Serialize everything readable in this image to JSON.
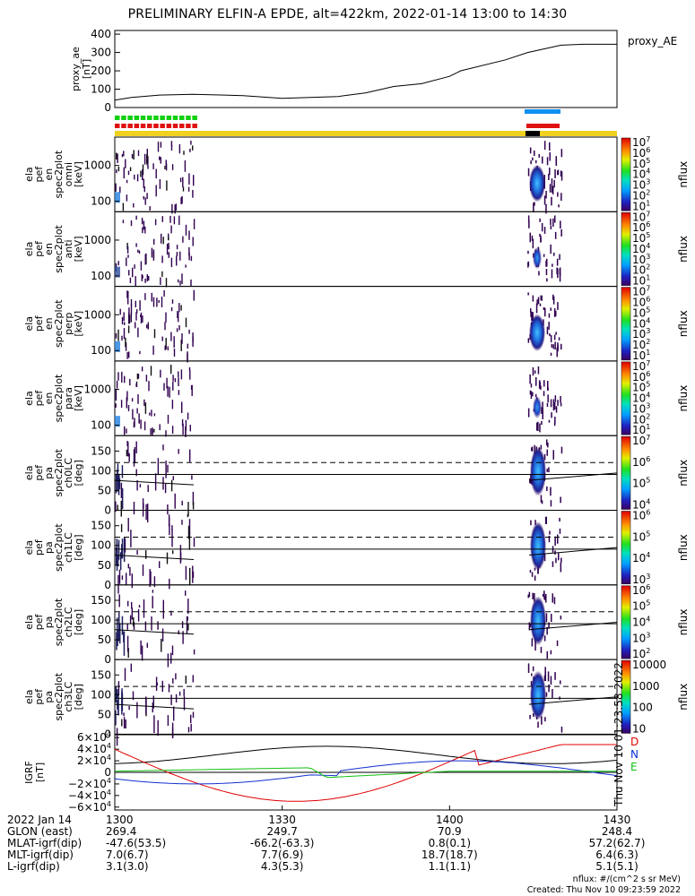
{
  "title": "PRELIMINARY ELFIN-A EPDE, alt=422km, 2022-01-14 13:00 to 14:30",
  "chart_data": {
    "type": "spectrogram-stack",
    "x_range": [
      "13:00",
      "14:30"
    ],
    "panels": [
      {
        "id": "proxy_ae",
        "type": "line",
        "ylabel_lines": [
          "proxy_ae",
          "[nT]"
        ],
        "legend": "proxy_AE",
        "ylim": [
          0,
          420
        ],
        "yticks": [
          "400",
          "300",
          "200",
          "100",
          "0"
        ],
        "x_min": [
          0,
          3,
          8,
          14,
          23,
          30,
          40,
          45,
          50,
          55,
          60,
          62,
          70,
          74,
          80,
          84,
          88,
          90
        ],
        "y": [
          40,
          55,
          68,
          72,
          65,
          50,
          60,
          80,
          115,
          130,
          170,
          200,
          260,
          300,
          340,
          345,
          345,
          345
        ]
      },
      {
        "id": "omni",
        "ylabel_lines": [
          "ela",
          "pef",
          "en",
          "spec2plot",
          "omni",
          "[keV]"
        ],
        "yticks": [
          "1000",
          "100"
        ],
        "cbar": {
          "label": "nflux",
          "ticks": [
            "10^7",
            "10^6",
            "10^5",
            "10^4",
            "10^3",
            "10^2",
            "10^1"
          ]
        }
      },
      {
        "id": "anti",
        "ylabel_lines": [
          "ela",
          "pef",
          "en",
          "spec2plot",
          "anti",
          "[keV]"
        ],
        "yticks": [
          "1000",
          "100"
        ],
        "cbar": {
          "label": "nflux",
          "ticks": [
            "10^7",
            "10^6",
            "10^5",
            "10^4",
            "10^3",
            "10^2",
            "10^1"
          ]
        }
      },
      {
        "id": "perp",
        "ylabel_lines": [
          "ela",
          "pef",
          "en",
          "spec2plot",
          "perp",
          "[keV]"
        ],
        "yticks": [
          "1000",
          "100"
        ],
        "cbar": {
          "label": "nflux",
          "ticks": [
            "10^7",
            "10^6",
            "10^5",
            "10^4",
            "10^3",
            "10^2",
            "10^1"
          ]
        }
      },
      {
        "id": "para",
        "ylabel_lines": [
          "ela",
          "pef",
          "en",
          "spec2plot",
          "para",
          "[keV]"
        ],
        "yticks": [
          "1000",
          "100"
        ],
        "cbar": {
          "label": "nflux",
          "ticks": [
            "10^7",
            "10^6",
            "10^5",
            "10^4",
            "10^3",
            "10^2",
            "10^1"
          ]
        }
      },
      {
        "id": "ch0LC",
        "ylabel_lines": [
          "ela",
          "pef",
          "pa",
          "spec2plot",
          "ch0LC",
          "[deg]"
        ],
        "yticks": [
          "150",
          "100",
          "50",
          "0"
        ],
        "cbar": {
          "label": "nflux",
          "ticks": [
            "10^7",
            "10^6",
            "10^5",
            "10^4"
          ]
        }
      },
      {
        "id": "ch1LC",
        "ylabel_lines": [
          "ela",
          "pef",
          "pa",
          "spec2plot",
          "ch1LC",
          "[deg]"
        ],
        "yticks": [
          "150",
          "100",
          "50",
          "0"
        ],
        "cbar": {
          "label": "nflux",
          "ticks": [
            "10^6",
            "10^5",
            "10^4",
            "10^3"
          ]
        }
      },
      {
        "id": "ch2LC",
        "ylabel_lines": [
          "ela",
          "pef",
          "pa",
          "spec2plot",
          "ch2LC",
          "[deg]"
        ],
        "yticks": [
          "150",
          "100",
          "50",
          "0"
        ],
        "cbar": {
          "label": "nflux",
          "ticks": [
            "10^6",
            "10^5",
            "10^4",
            "10^3",
            "10^2"
          ]
        }
      },
      {
        "id": "ch3LC",
        "ylabel_lines": [
          "ela",
          "pef",
          "pa",
          "spec2plot",
          "ch3LC",
          "[deg]"
        ],
        "yticks": [
          "150",
          "100",
          "50",
          "0"
        ],
        "cbar": {
          "label": "nflux",
          "ticks": [
            "10000",
            "1000",
            "100",
            "10"
          ]
        }
      },
      {
        "id": "igrf",
        "type": "line",
        "ylabel_lines": [
          "IGRF",
          "[nT]"
        ],
        "ylim": [
          -65000,
          65000
        ],
        "yticks": [
          "6×10^4",
          "4×10^4",
          "2×10^4",
          "0",
          "−2×10^4",
          "−4×10^4",
          "−6×10^4"
        ],
        "components": [
          {
            "name": "D",
            "color": "#e00000"
          },
          {
            "name": "N",
            "color": "#1030d0"
          },
          {
            "name": "E",
            "color": "#10c010"
          }
        ]
      }
    ]
  },
  "time_rows": {
    "labels": [
      "2022 Jan 14",
      "GLON (east)",
      "MLAT-igrf(dip)",
      "MLT-igrf(dip)",
      "L-igrf(dip)"
    ],
    "ticks": [
      {
        "time": "1300",
        "glon": "269.4",
        "mlat": "-47.6(53.5)",
        "mlt": "7.0(6.7)",
        "l": "3.1(3.0)"
      },
      {
        "time": "1330",
        "glon": "249.7",
        "mlat": "-66.2(-63.3)",
        "mlt": "7.7(6.9)",
        "l": "4.3(5.3)"
      },
      {
        "time": "1400",
        "glon": "70.9",
        "mlat": "0.8(0.1)",
        "mlt": "18.7(18.7)",
        "l": "1.1(1.1)"
      },
      {
        "time": "1430",
        "glon": "248.4",
        "mlat": "57.2(62.7)",
        "mlt": "6.4(6.3)",
        "l": "5.1(5.1)"
      }
    ]
  },
  "footer": {
    "units": "nflux: #/(cm^2 s sr MeV)",
    "created": "Created: Thu Nov 10 09:23:59 2022",
    "side_stamp": "Thu Nov 10 01:23:58 2022"
  },
  "colors": {
    "yellow_bar": "#f0d020",
    "green_marks": "#10d010",
    "red_marks": "#e01010",
    "blue_marks": "#1090f0",
    "black_mark": "#000000"
  }
}
